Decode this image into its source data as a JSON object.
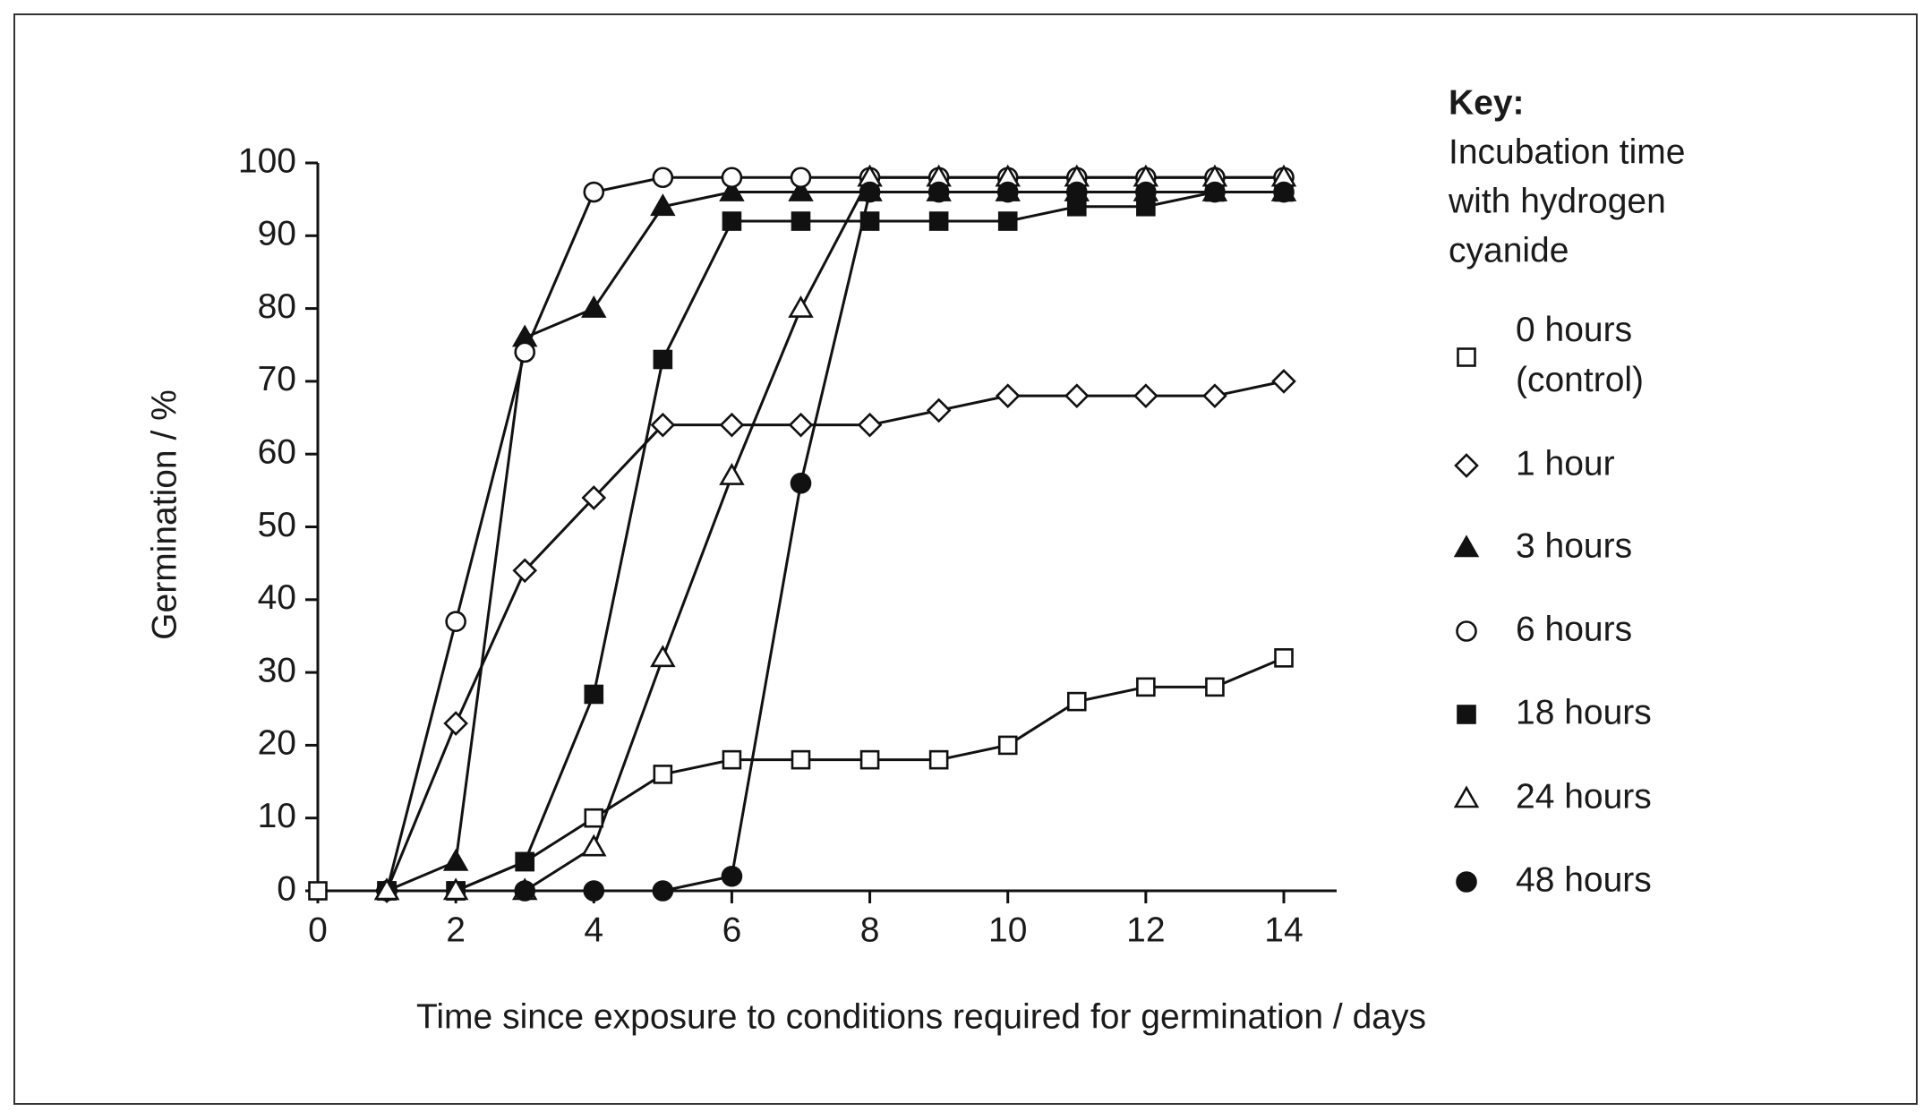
{
  "chart_data": {
    "type": "line",
    "x_label": "Time since exposure to conditions required for germination / days",
    "y_label": "Germination / %",
    "legend_title": "Key:",
    "legend_note": [
      "Incubation time",
      "with hydrogen",
      "cyanide"
    ],
    "x": [
      0,
      1,
      2,
      3,
      4,
      5,
      6,
      7,
      8,
      9,
      10,
      11,
      12,
      13,
      14
    ],
    "xlim": [
      0,
      14
    ],
    "xticks": [
      0,
      2,
      4,
      6,
      8,
      10,
      12,
      14
    ],
    "ylim": [
      0,
      100
    ],
    "yticks": [
      0,
      10,
      20,
      30,
      40,
      50,
      60,
      70,
      80,
      90,
      100
    ],
    "color": "#111111",
    "series": [
      {
        "name": "0 hours (control)",
        "marker": "square",
        "filled": false,
        "values": [
          0,
          0,
          0,
          4,
          10,
          16,
          18,
          18,
          18,
          18,
          20,
          26,
          28,
          28,
          32
        ]
      },
      {
        "name": "1 hour",
        "marker": "diamond",
        "filled": false,
        "values": [
          null,
          0,
          23,
          44,
          54,
          64,
          64,
          64,
          64,
          66,
          68,
          68,
          68,
          68,
          70
        ]
      },
      {
        "name": "3 hours",
        "marker": "triangle",
        "filled": true,
        "values": [
          null,
          0,
          4,
          76,
          80,
          94,
          96,
          96,
          96,
          96,
          96,
          96,
          96,
          96,
          96
        ]
      },
      {
        "name": "6 hours",
        "marker": "circle",
        "filled": false,
        "values": [
          null,
          0,
          37,
          74,
          96,
          98,
          98,
          98,
          98,
          98,
          98,
          98,
          98,
          98,
          98
        ]
      },
      {
        "name": "18 hours",
        "marker": "square",
        "filled": true,
        "values": [
          null,
          0,
          0,
          4,
          27,
          73,
          92,
          92,
          92,
          92,
          92,
          94,
          94,
          96,
          96
        ]
      },
      {
        "name": "24 hours",
        "marker": "triangle",
        "filled": false,
        "values": [
          null,
          0,
          0,
          0,
          6,
          32,
          57,
          80,
          98,
          98,
          98,
          98,
          98,
          98,
          98
        ]
      },
      {
        "name": "48 hours",
        "marker": "circle",
        "filled": true,
        "values": [
          null,
          null,
          null,
          0,
          0,
          0,
          2,
          56,
          96,
          96,
          96,
          96,
          96,
          96,
          96
        ]
      }
    ]
  }
}
